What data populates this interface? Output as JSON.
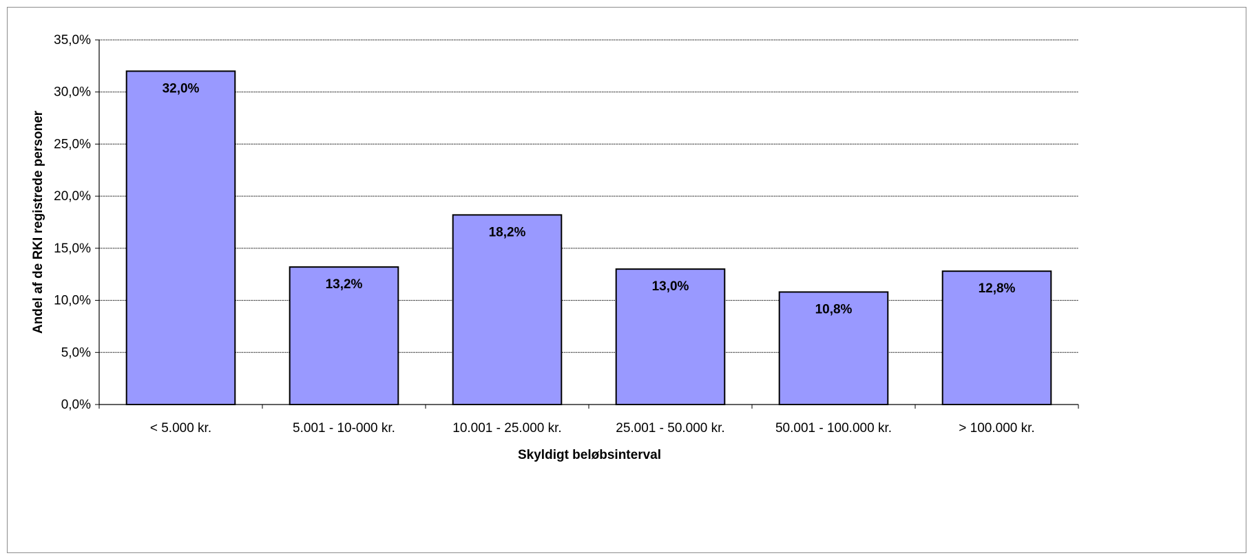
{
  "chart_data": {
    "type": "bar",
    "title": "",
    "xlabel": "Skyldigt beløbsinterval",
    "ylabel": "Andel af de RKI registrede personer",
    "categories": [
      "< 5.000 kr.",
      "5.001 - 10-000 kr.",
      "10.001 - 25.000 kr.",
      "25.001 - 50.000 kr.",
      "50.001 - 100.000 kr.",
      "> 100.000 kr."
    ],
    "values": [
      32.0,
      13.2,
      18.2,
      13.0,
      10.8,
      12.8
    ],
    "data_labels": [
      "32,0%",
      "13,2%",
      "18,2%",
      "13,0%",
      "10,8%",
      "12,8%"
    ],
    "ylim": [
      0,
      35
    ],
    "yticks": [
      0,
      5,
      10,
      15,
      20,
      25,
      30,
      35
    ],
    "ytick_labels": [
      "0,0%",
      "5,0%",
      "10,0%",
      "15,0%",
      "20,0%",
      "25,0%",
      "30,0%",
      "35,0%"
    ],
    "grid": true,
    "legend": "none",
    "colors": {
      "bar_fill": "#9999ff",
      "bar_stroke": "#000000",
      "grid": "#000000"
    }
  }
}
